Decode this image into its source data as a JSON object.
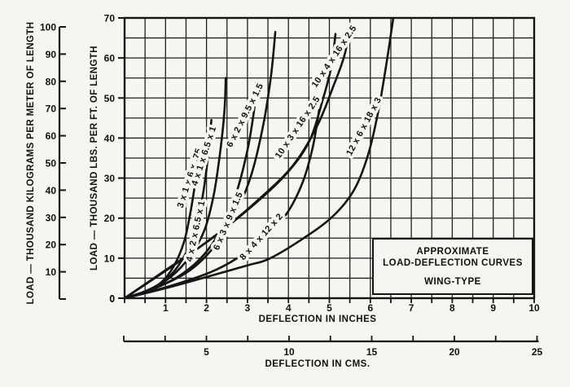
{
  "colors": {
    "ink": "#151515",
    "paper": "#f6f5f1",
    "grid": "#1f1f1f"
  },
  "legend_box": {
    "lines": [
      "APPROXIMATE",
      "LOAD-DEFLECTION CURVES",
      "WING-TYPE"
    ]
  },
  "axes": {
    "x_inches": {
      "title": "DEFLECTION IN INCHES",
      "range": [
        0,
        10
      ],
      "major_ticks": [
        1,
        2,
        3,
        4,
        5,
        6,
        7,
        8,
        9,
        10
      ],
      "minor_step": 0.5
    },
    "x_cms": {
      "title": "DEFLECTION IN CMS.",
      "range": [
        0,
        25
      ],
      "major_ticks": [
        5,
        10,
        15,
        20,
        25
      ],
      "minor_step": 2.5
    },
    "y_lbs": {
      "title": "LOAD — THOUSAND LBS. PER FT. OF LENGTH",
      "range": [
        0,
        70
      ],
      "major_ticks": [
        0,
        10,
        20,
        30,
        40,
        50,
        60,
        70
      ],
      "minor_step": 5
    },
    "y_kg": {
      "title": "LOAD — THOUSAND KILOGRAMS PER METER OF LENGTH",
      "range": [
        0,
        100
      ],
      "major_ticks": [
        10,
        20,
        30,
        40,
        50,
        60,
        70,
        80,
        90,
        100
      ]
    }
  },
  "chart_data": {
    "type": "line",
    "title": "APPROXIMATE LOAD-DEFLECTION CURVES — WING-TYPE",
    "xlabel": "DEFLECTION IN INCHES",
    "xlabel2": "DEFLECTION IN CMS.",
    "ylabel": "LOAD — THOUSAND LBS. PER FT. OF LENGTH",
    "ylabel2": "LOAD — THOUSAND KILOGRAMS PER METER OF LENGTH",
    "xlim": [
      0,
      10
    ],
    "ylim": [
      0,
      70
    ],
    "grid": "on",
    "x_minor_step": 0.5,
    "y_minor_step": 5,
    "legend_position": "lower-right box",
    "series": [
      {
        "name": "3 x 1 x 6 x .75",
        "points": [
          [
            0,
            0
          ],
          [
            0.45,
            1.5
          ],
          [
            0.9,
            4
          ],
          [
            1.2,
            8
          ],
          [
            1.45,
            14
          ],
          [
            1.6,
            21
          ],
          [
            1.73,
            29
          ],
          [
            1.85,
            37
          ]
        ],
        "label_at": [
          1.65,
          29.8
        ],
        "label_angle": -72
      },
      {
        "name": "4 x 1 x 6.5 x 1",
        "points": [
          [
            0,
            0
          ],
          [
            0.55,
            1.8
          ],
          [
            1.05,
            5
          ],
          [
            1.4,
            9.5
          ],
          [
            1.7,
            16
          ],
          [
            1.88,
            24
          ],
          [
            2.01,
            33
          ],
          [
            2.12,
            44.5
          ]
        ],
        "label_at": [
          2.0,
          35.3
        ],
        "label_angle": -72
      },
      {
        "name": "4 x 2 x 6.5 x 1",
        "points": [
          [
            0,
            0
          ],
          [
            0.6,
            2
          ],
          [
            1.15,
            5.5
          ],
          [
            1.6,
            10.5
          ],
          [
            1.95,
            17
          ],
          [
            2.18,
            26
          ],
          [
            2.34,
            37
          ],
          [
            2.44,
            47
          ],
          [
            2.47,
            55
          ]
        ],
        "label_at": [
          1.8,
          16.6
        ],
        "label_angle": -78
      },
      {
        "name": "6 x 2 x 9.5 x 1.5",
        "points": [
          [
            0,
            0
          ],
          [
            0.75,
            2.5
          ],
          [
            1.4,
            6
          ],
          [
            1.95,
            11
          ],
          [
            2.4,
            18
          ],
          [
            2.75,
            27
          ],
          [
            3.0,
            37
          ],
          [
            3.15,
            46
          ],
          [
            3.24,
            54
          ]
        ],
        "label_at": [
          3.0,
          45.4
        ],
        "label_angle": -63
      },
      {
        "name": "6 x 3 x 9 x 1.5",
        "points": [
          [
            0,
            0
          ],
          [
            0.85,
            3
          ],
          [
            1.6,
            7
          ],
          [
            2.2,
            13
          ],
          [
            2.7,
            21
          ],
          [
            3.1,
            31
          ],
          [
            3.4,
            44
          ],
          [
            3.58,
            56
          ],
          [
            3.68,
            66.5
          ]
        ],
        "label_at": [
          2.59,
          19.0
        ],
        "label_angle": -67
      },
      {
        "name": "8 x 4 x 12 x 2",
        "points": [
          [
            0,
            0
          ],
          [
            1.1,
            3
          ],
          [
            2.1,
            6.5
          ],
          [
            2.75,
            10
          ],
          [
            3.4,
            15
          ],
          [
            3.95,
            21
          ],
          [
            4.35,
            29
          ],
          [
            4.6,
            38
          ],
          [
            4.75,
            47
          ]
        ],
        "label_at": [
          3.39,
          14.9
        ],
        "label_angle": -48
      },
      {
        "name": "10 x 3 x 16 x 2.5",
        "points": [
          [
            0,
            0
          ],
          [
            1,
            7
          ],
          [
            2,
            14
          ],
          [
            3,
            22
          ],
          [
            3.9,
            30.5
          ],
          [
            4.5,
            39
          ],
          [
            4.85,
            50
          ],
          [
            5.05,
            58
          ],
          [
            5.15,
            66
          ]
        ],
        "label_at": [
          4.28,
          42.3
        ],
        "label_angle": -56
      },
      {
        "name": "10 x 4 x 16 x 2.5",
        "points": [
          [
            0,
            0
          ],
          [
            1.1,
            7.5
          ],
          [
            2.2,
            15.5
          ],
          [
            3.2,
            24
          ],
          [
            4.1,
            33
          ],
          [
            4.7,
            43
          ],
          [
            5.1,
            53
          ],
          [
            5.35,
            60
          ],
          [
            5.49,
            66.4
          ]
        ],
        "label_at": [
          5.17,
          60.0
        ],
        "label_angle": -56
      },
      {
        "name": "12 x 6 x 18 x 3",
        "points": [
          [
            0,
            0
          ],
          [
            1,
            2.5
          ],
          [
            2,
            5.3
          ],
          [
            3,
            8.2
          ],
          [
            3.52,
            9.8
          ],
          [
            4.3,
            14.5
          ],
          [
            5.07,
            20.3
          ],
          [
            5.6,
            27
          ],
          [
            5.95,
            36
          ],
          [
            6.2,
            47
          ],
          [
            6.4,
            59
          ],
          [
            6.56,
            70
          ]
        ],
        "label_at": [
          5.9,
          42.6
        ],
        "label_angle": -62
      }
    ]
  }
}
